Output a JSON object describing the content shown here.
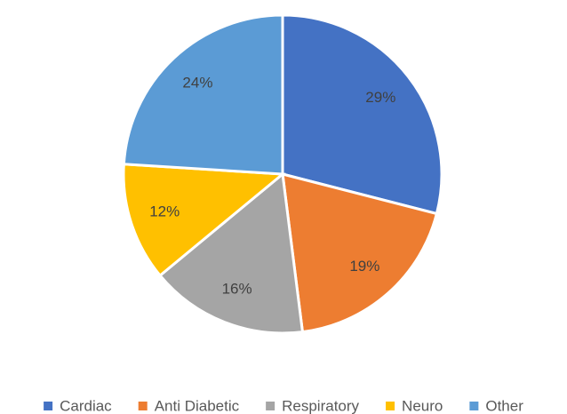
{
  "chart_data": {
    "type": "pie",
    "categories": [
      "Cardiac",
      "Anti Diabetic",
      "Respiratory",
      "Neuro",
      "Other"
    ],
    "values": [
      29,
      19,
      16,
      12,
      24
    ],
    "value_labels": [
      "29%",
      "19%",
      "16%",
      "12%",
      "24%"
    ],
    "colors": [
      "#4472c4",
      "#ed7d31",
      "#a5a5a5",
      "#ffc000",
      "#5b9bd5"
    ],
    "legend": "bottom"
  }
}
